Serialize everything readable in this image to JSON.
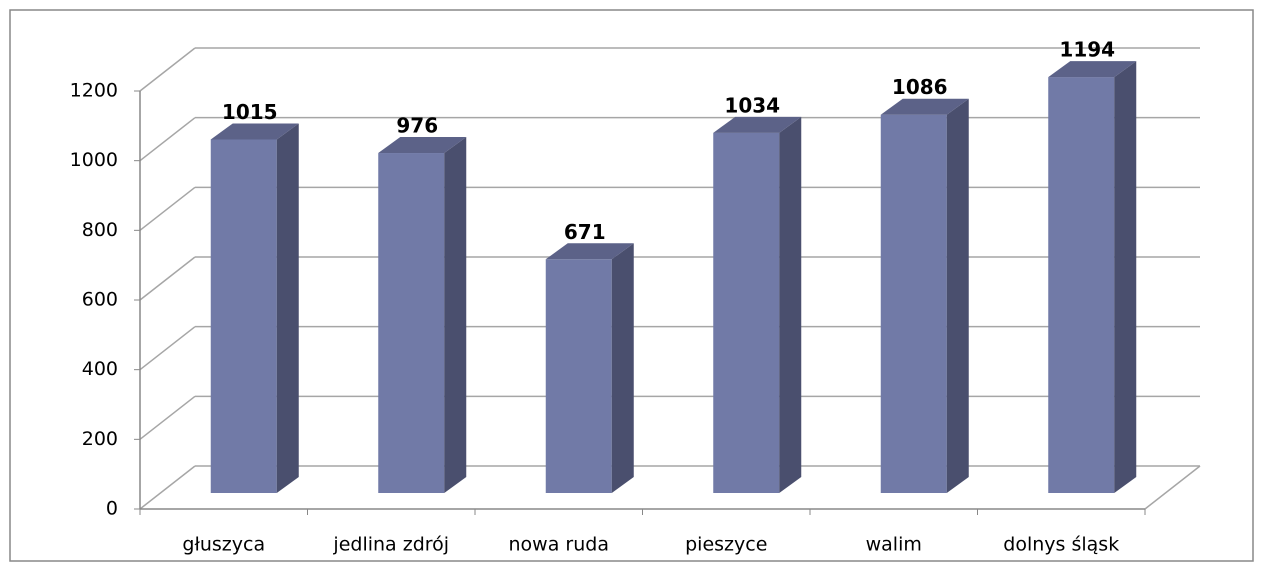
{
  "chart_data": {
    "type": "bar",
    "categories": [
      "głuszyca",
      "jedlina zdrój",
      "nowa ruda",
      "pieszyce",
      "walim",
      "dolnys śląsk"
    ],
    "values": [
      1015,
      976,
      671,
      1034,
      1086,
      1194
    ],
    "color": "#717aa7",
    "ylim": [
      0,
      1200
    ],
    "yticks": [
      0,
      200,
      400,
      600,
      800,
      1000,
      1200
    ],
    "grid": true
  }
}
